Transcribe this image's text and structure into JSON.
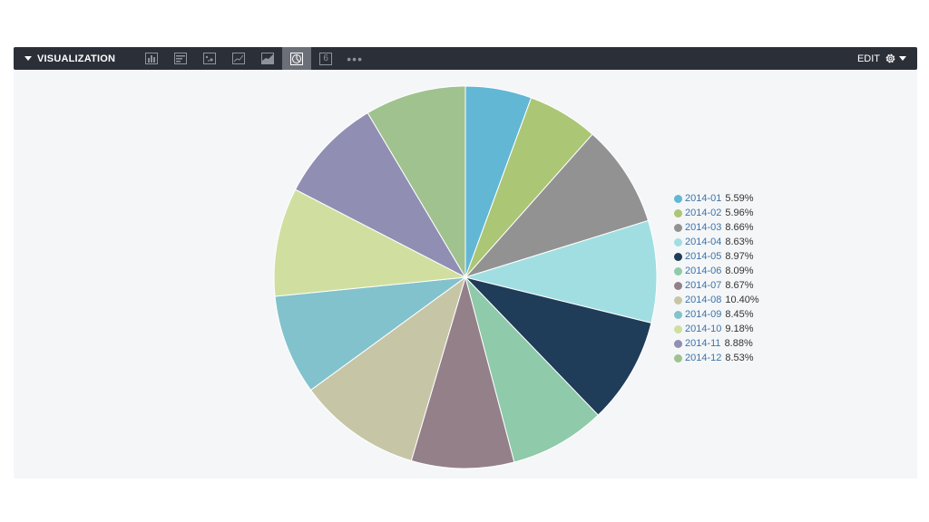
{
  "toolbar": {
    "title": "VISUALIZATION",
    "edit_label": "EDIT",
    "number_icon_label": "6",
    "more_label": "•••",
    "icons": [
      "column-chart-icon",
      "bar-chart-icon",
      "scatter-chart-icon",
      "line-chart-icon",
      "area-chart-icon",
      "pie-chart-icon",
      "single-value-icon",
      "more-icon"
    ],
    "active_icon": "pie-chart-icon"
  },
  "chart_data": {
    "type": "pie",
    "categories": [
      "2014-01",
      "2014-02",
      "2014-03",
      "2014-04",
      "2014-05",
      "2014-06",
      "2014-07",
      "2014-08",
      "2014-09",
      "2014-10",
      "2014-11",
      "2014-12"
    ],
    "values": [
      5.59,
      5.96,
      8.66,
      8.63,
      8.97,
      8.09,
      8.67,
      10.4,
      8.45,
      9.18,
      8.88,
      8.53
    ],
    "value_labels": [
      "5.59%",
      "5.96%",
      "8.66%",
      "8.63%",
      "8.97%",
      "8.09%",
      "8.67%",
      "10.40%",
      "8.45%",
      "9.18%",
      "8.88%",
      "8.53%"
    ],
    "colors": [
      "#62b7d4",
      "#abc675",
      "#929292",
      "#a1dee2",
      "#1f3c59",
      "#8fcaaa",
      "#948089",
      "#c6c6a6",
      "#82c2cc",
      "#d0df9f",
      "#918eb3",
      "#a0c28f"
    ],
    "legend_position": "right",
    "start_angle": "top, clockwise"
  }
}
